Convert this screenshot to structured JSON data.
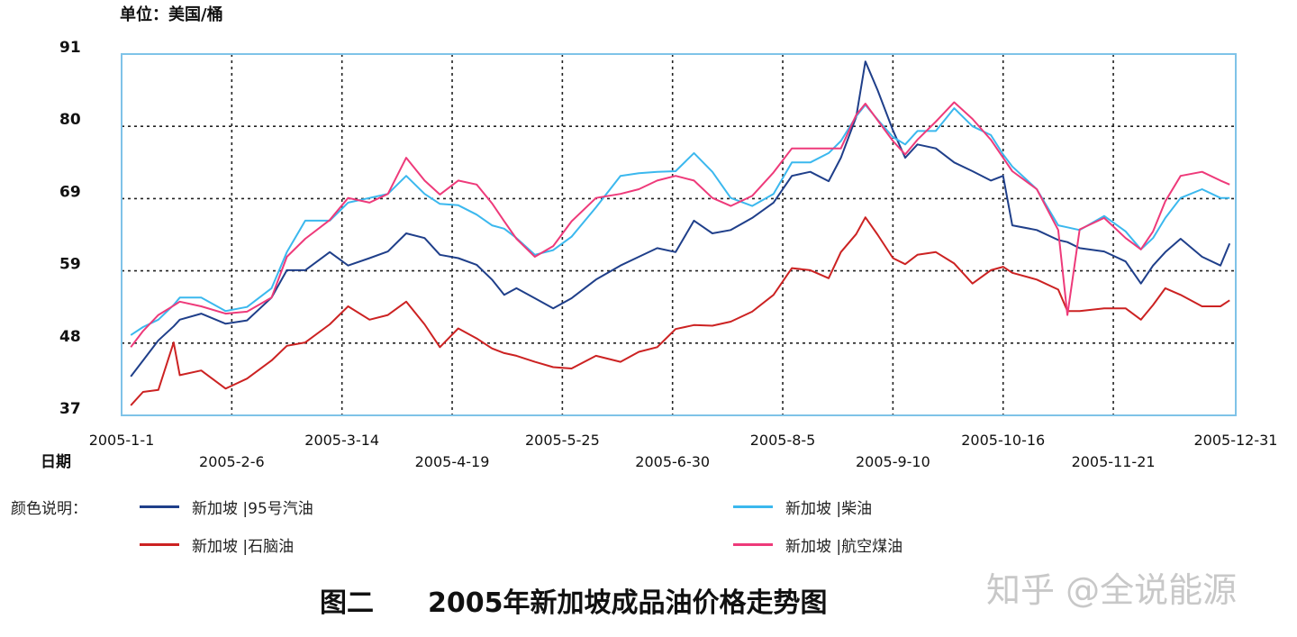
{
  "unit_label": "单位：美国/桶",
  "legend_label": "颜色说明：",
  "title": "图二　　2005年新加坡成品油价格走势图",
  "watermark": "知乎 @全说能源",
  "chart_data": {
    "type": "line",
    "title": "图二　　2005年新加坡成品油价格走势图",
    "xlabel": "日期",
    "ylabel": "单位：美国/桶",
    "ylim": [
      37,
      91
    ],
    "xlim": [
      "2005-01-01",
      "2005-12-31"
    ],
    "yticks": [
      "91",
      "80",
      "69",
      "59",
      "48",
      "37"
    ],
    "xticks": [
      "2005-1-1",
      "2005-2-6",
      "2005-3-14",
      "2005-4-19",
      "2005-5-25",
      "2005-6-30",
      "2005-8-5",
      "2005-9-10",
      "2005-10-16",
      "2005-11-21",
      "2005-12-31"
    ],
    "grid": true,
    "legend_placement": "bottom",
    "x": [
      "2005-01-04",
      "2005-01-08",
      "2005-01-13",
      "2005-01-18",
      "2005-01-20",
      "2005-01-27",
      "2005-02-04",
      "2005-02-11",
      "2005-02-19",
      "2005-02-24",
      "2005-03-02",
      "2005-03-10",
      "2005-03-16",
      "2005-03-23",
      "2005-03-29",
      "2005-04-04",
      "2005-04-10",
      "2005-04-15",
      "2005-04-21",
      "2005-04-27",
      "2005-05-02",
      "2005-05-06",
      "2005-05-10",
      "2005-05-16",
      "2005-05-22",
      "2005-05-28",
      "2005-06-05",
      "2005-06-13",
      "2005-06-19",
      "2005-06-25",
      "2005-07-01",
      "2005-07-07",
      "2005-07-13",
      "2005-07-19",
      "2005-07-26",
      "2005-08-02",
      "2005-08-08",
      "2005-08-14",
      "2005-08-20",
      "2005-08-24",
      "2005-08-29",
      "2005-09-01",
      "2005-09-05",
      "2005-09-10",
      "2005-09-14",
      "2005-09-18",
      "2005-09-24",
      "2005-09-30",
      "2005-10-06",
      "2005-10-12",
      "2005-10-16",
      "2005-10-19",
      "2005-10-27",
      "2005-11-03",
      "2005-11-06",
      "2005-11-10",
      "2005-11-18",
      "2005-11-25",
      "2005-11-30",
      "2005-12-04",
      "2005-12-08",
      "2005-12-13",
      "2005-12-20",
      "2005-12-26",
      "2005-12-29"
    ],
    "series": [
      {
        "name": "新加坡 |95号汽油",
        "color": "#1f3f8a",
        "values": [
          42.8,
          45.2,
          48.2,
          50.3,
          51.3,
          52.2,
          50.7,
          51.2,
          54.6,
          58.7,
          58.7,
          61.4,
          59.4,
          60.5,
          61.5,
          64.2,
          63.5,
          61,
          60.5,
          59.5,
          57.3,
          55,
          56,
          54.5,
          53,
          54.5,
          57.3,
          59.4,
          60.7,
          62,
          61.4,
          66.1,
          64.2,
          64.7,
          66.5,
          68.8,
          72.8,
          73.4,
          72,
          75.5,
          81.6,
          89.9,
          85.6,
          79.6,
          75.5,
          77.5,
          76.9,
          74.8,
          73.5,
          72.1,
          72.8,
          65.4,
          64.7,
          63.2,
          62.9,
          62,
          61.5,
          60,
          56.7,
          59.4,
          61.4,
          63.4,
          60.7,
          59.4,
          62.7
        ]
      },
      {
        "name": "新加坡 |柴油",
        "color": "#3bb8ee",
        "values": [
          49,
          50.2,
          51.3,
          53.5,
          54.6,
          54.6,
          52.6,
          53.2,
          56,
          61.4,
          66.1,
          66.1,
          68.8,
          69.5,
          70.1,
          72.8,
          70.1,
          68.6,
          68.4,
          67,
          65.4,
          64.9,
          63.5,
          61,
          61.7,
          63.7,
          68.1,
          72.8,
          73.2,
          73.4,
          73.5,
          76.2,
          73.4,
          69.5,
          68.3,
          70.1,
          74.8,
          74.8,
          76.2,
          78,
          81.7,
          83.4,
          81.2,
          78.6,
          77.5,
          79.5,
          79.5,
          82.9,
          80.2,
          78.9,
          76,
          74.2,
          70.8,
          65.4,
          65.1,
          64.7,
          66.8,
          64.5,
          61.8,
          63.5,
          66.5,
          69.5,
          70.8,
          69.5,
          69.5
        ]
      },
      {
        "name": "新加坡 |石脑油",
        "color": "#cc2222",
        "values": [
          38.5,
          40.5,
          40.8,
          47.9,
          43,
          43.7,
          41,
          42.5,
          45.2,
          47.4,
          47.9,
          50.6,
          53.3,
          51.3,
          52,
          54,
          50.6,
          47.2,
          50,
          48.5,
          47,
          46.3,
          45.9,
          45,
          44.2,
          44,
          45.9,
          45,
          46.5,
          47.2,
          49.9,
          50.5,
          50.4,
          51,
          52.5,
          55,
          59,
          58.7,
          57.5,
          61.4,
          64.1,
          66.6,
          64,
          60.5,
          59.6,
          61,
          61.4,
          59.7,
          56.7,
          58.7,
          59.2,
          58.3,
          57.3,
          55.8,
          52.6,
          52.6,
          53,
          53,
          51.3,
          53.5,
          56,
          55,
          53.3,
          53.3,
          54.2
        ]
      },
      {
        "name": "新加坡 |航空煤油",
        "color": "#ee3a7a",
        "values": [
          47.2,
          49.6,
          52,
          53.4,
          54,
          53.3,
          52.2,
          52.5,
          54.6,
          60.7,
          63.4,
          66.2,
          69.5,
          68.8,
          70.1,
          75.5,
          72.1,
          70,
          72.1,
          71.5,
          68.7,
          66,
          63.4,
          60.7,
          62.3,
          66,
          69.5,
          70.1,
          70.8,
          72.1,
          72.8,
          72.1,
          69.5,
          68.3,
          69.8,
          73.3,
          76.9,
          76.9,
          76.9,
          76.9,
          81.9,
          83.6,
          81.1,
          78,
          76,
          78.2,
          80.9,
          83.8,
          81.3,
          78.2,
          75.5,
          73.5,
          70.8,
          64.7,
          52,
          64.8,
          66.5,
          63.5,
          61.8,
          64.5,
          69,
          72.8,
          73.4,
          72.1,
          71.5
        ]
      }
    ]
  }
}
